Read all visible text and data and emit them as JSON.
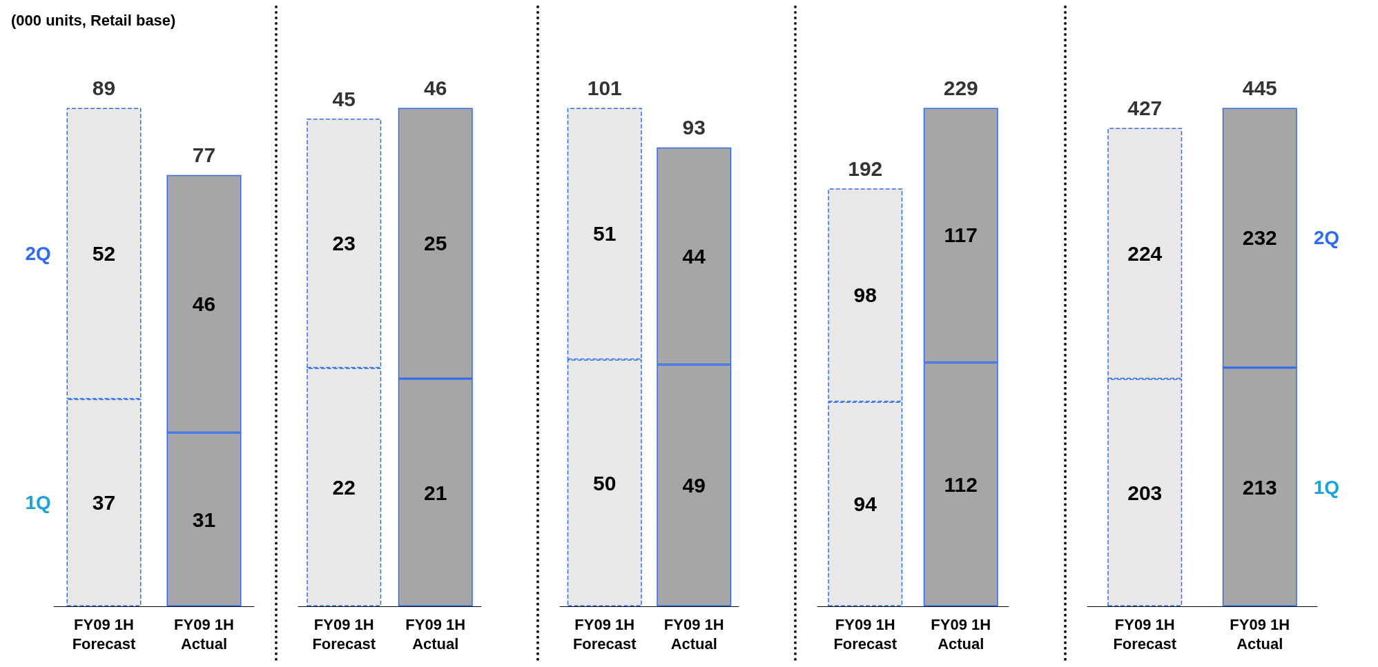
{
  "chart_data": [
    {
      "type": "bar",
      "stacked": true,
      "data_labels": true,
      "annotations": [
        "(000 units, Retail base)"
      ],
      "categories": [
        "FY09 1H\nForecast",
        "FY09 1H\nActual"
      ],
      "totals": [
        "89",
        "77"
      ],
      "series": [
        {
          "name": "1Q",
          "color": "#1aa3d9",
          "colors": [
            "#e8e8e8",
            "#a6a6a6"
          ],
          "values": [
            37,
            31
          ]
        },
        {
          "name": "2Q",
          "color": "#2e6bf0",
          "colors": [
            "#e8e8e8",
            "#a6a6a6"
          ],
          "values": [
            52,
            46
          ]
        }
      ]
    },
    {
      "type": "bar",
      "stacked": true,
      "data_labels": true,
      "categories": [
        "FY09 1H\nForecast",
        "FY09 1H\nActual"
      ],
      "totals": [
        "45",
        "46"
      ],
      "series": [
        {
          "colors": [
            "#e8e8e8",
            "#a6a6a6"
          ],
          "values": [
            22,
            21
          ]
        },
        {
          "colors": [
            "#e8e8e8",
            "#a6a6a6"
          ],
          "values": [
            23,
            25
          ]
        }
      ]
    },
    {
      "type": "bar",
      "stacked": true,
      "data_labels": true,
      "categories": [
        "FY09 1H\nForecast",
        "FY09 1H\nActual"
      ],
      "totals": [
        "101",
        "93"
      ],
      "series": [
        {
          "colors": [
            "#e8e8e8",
            "#a6a6a6"
          ],
          "values": [
            50,
            49
          ]
        },
        {
          "colors": [
            "#e8e8e8",
            "#a6a6a6"
          ],
          "values": [
            51,
            44
          ]
        }
      ]
    },
    {
      "type": "bar",
      "stacked": true,
      "data_labels": true,
      "categories": [
        "FY09 1H\nForecast",
        "FY09 1H\nActual"
      ],
      "totals": [
        "192",
        "229"
      ],
      "series": [
        {
          "colors": [
            "#e8e8e8",
            "#a6a6a6"
          ],
          "values": [
            94,
            112
          ]
        },
        {
          "colors": [
            "#e8e8e8",
            "#a6a6a6"
          ],
          "values": [
            98,
            117
          ]
        }
      ]
    },
    {
      "type": "bar",
      "stacked": true,
      "data_labels": true,
      "categories": [
        "FY09 1H\nForecast",
        "FY09 1H\nActual"
      ],
      "totals": [
        "427",
        "445"
      ],
      "series": [
        {
          "name": "1Q",
          "color": "#1aa3d9",
          "colors": [
            "#e8e8e8",
            "#a6a6a6"
          ],
          "values": [
            203,
            213
          ]
        },
        {
          "name": "2Q",
          "color": "#2e6bf0",
          "colors": [
            "#e8e8e8",
            "#a6a6a6"
          ],
          "values": [
            224,
            232
          ]
        }
      ]
    }
  ]
}
